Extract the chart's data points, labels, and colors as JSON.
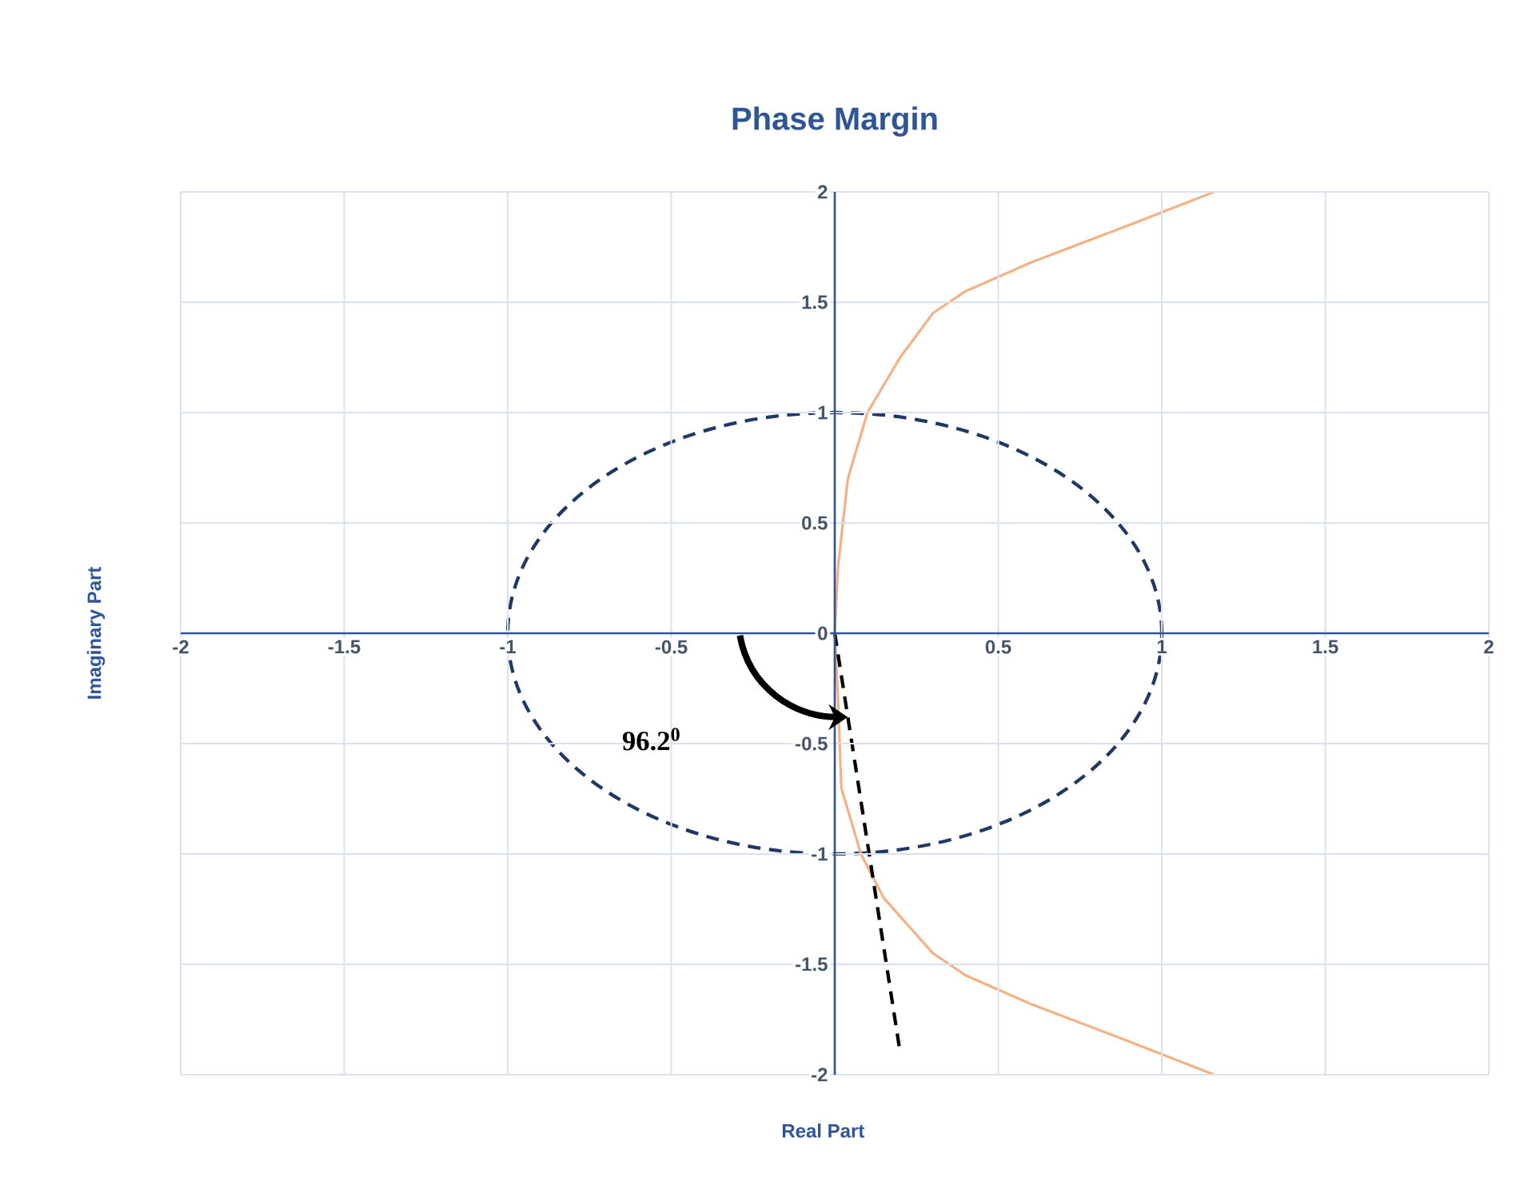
{
  "chart_data": {
    "type": "line",
    "title": "Phase Margin",
    "xlabel": "Real Part",
    "ylabel": "Imaginary Part",
    "xlim": [
      -2,
      2
    ],
    "ylim": [
      -2,
      2
    ],
    "xticks": [
      -2,
      -1.5,
      -1,
      -0.5,
      0.5,
      1,
      1.5,
      2
    ],
    "yticks": [
      -2,
      -1.5,
      -1,
      -0.5,
      0,
      0.5,
      1,
      1.5,
      2
    ],
    "grid": true,
    "series": [
      {
        "color": "#f4b183",
        "line_style": "solid",
        "x": [
          1.16,
          0.9,
          0.6,
          0.4,
          0.3,
          0.2,
          0.1,
          0.04,
          0.01,
          0,
          0.01,
          0.02,
          0.08,
          0.15,
          0.3,
          0.4,
          0.6,
          0.9,
          1.16
        ],
        "values": [
          2,
          1.85,
          1.68,
          1.55,
          1.45,
          1.25,
          1.0,
          0.7,
          0.3,
          0,
          -0.3,
          -0.7,
          -1.0,
          -1.2,
          -1.45,
          -1.55,
          -1.68,
          -1.85,
          -2
        ]
      },
      {
        "color": "#000000",
        "line_style": "dashed",
        "x": [
          0,
          0.2
        ],
        "values": [
          0,
          -1.9
        ]
      }
    ],
    "annotations": [
      "96.2$^{0}$"
    ]
  }
}
